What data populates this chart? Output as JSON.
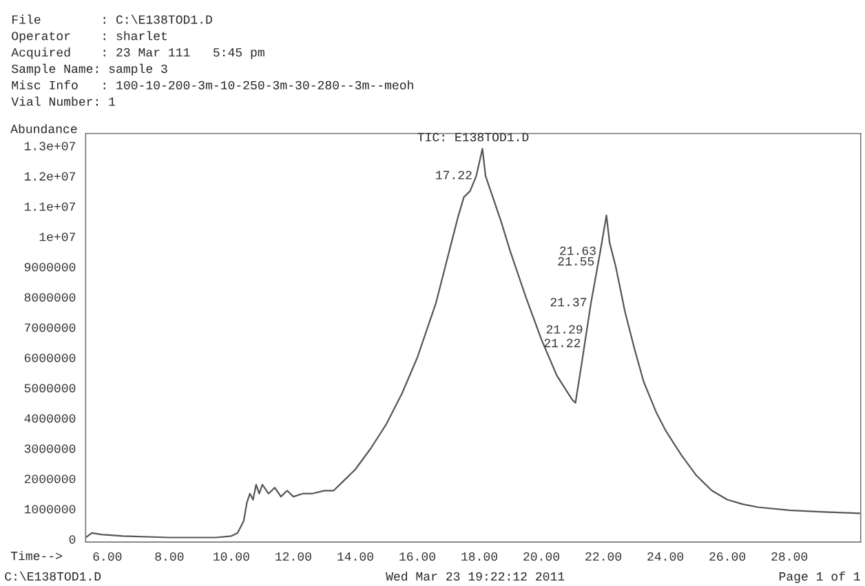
{
  "chart_data": {
    "type": "line",
    "title": "TIC: E138TOD1.D",
    "ylabel": "Abundance",
    "xlabel": "Time-->",
    "annotations": [
      "File        : C:\\E138TOD1.D",
      "Operator    : sharlet",
      "Acquired    : 23 Mar 111   5:45 pm",
      "Sample Name: sample 3",
      "Misc Info   : 100-10-200-3m-10-250-3m-30-280--3m--meoh",
      "Vial Number: 1",
      "C:\\E138TOD1.D",
      "Wed Mar 23 19:22:12 2011",
      "Page 1 of 1",
      {
        "text": "17.22",
        "x": 17.9,
        "y": 12000000
      },
      {
        "text": "21.63",
        "x": 21.9,
        "y": 9500000
      },
      {
        "text": "21.55",
        "x": 21.84,
        "y": 9150000
      },
      {
        "text": "21.37",
        "x": 21.6,
        "y": 7800000
      },
      {
        "text": "21.29",
        "x": 21.47,
        "y": 6900000
      },
      {
        "text": "21.22",
        "x": 21.4,
        "y": 6450000
      }
    ],
    "x": [
      5.3,
      5.5,
      5.8,
      6.5,
      8,
      9.5,
      10.0,
      10.2,
      10.4,
      10.5,
      10.6,
      10.7,
      10.8,
      10.9,
      11.0,
      11.2,
      11.4,
      11.6,
      11.8,
      12.0,
      12.3,
      12.6,
      13.0,
      13.3,
      13.6,
      14.0,
      14.5,
      15.0,
      15.5,
      16.0,
      16.3,
      16.6,
      16.9,
      17.1,
      17.3,
      17.5,
      17.7,
      17.9,
      18.1,
      18.2,
      18.4,
      18.7,
      19.0,
      19.5,
      20.0,
      20.5,
      21.0,
      21.1,
      21.3,
      21.6,
      21.9,
      22.1,
      22.2,
      22.4,
      22.7,
      23.0,
      23.3,
      23.7,
      24.0,
      24.5,
      25.0,
      25.5,
      26.0,
      26.5,
      27.0,
      28.0,
      29.0,
      30.3
    ],
    "series": [
      {
        "color": "#555555",
        "values": [
          50000,
          200000,
          150000,
          100000,
          50000,
          50000,
          100000,
          200000,
          600000,
          1200000,
          1500000,
          1300000,
          1800000,
          1500000,
          1800000,
          1500000,
          1700000,
          1400000,
          1600000,
          1400000,
          1500000,
          1500000,
          1600000,
          1600000,
          1900000,
          2300000,
          3000000,
          3800000,
          4800000,
          6000000,
          6900000,
          7800000,
          9000000,
          9800000,
          10600000,
          11300000,
          11500000,
          12000000,
          12900000,
          12000000,
          11400000,
          10500000,
          9500000,
          8000000,
          6600000,
          5400000,
          4600000,
          4500000,
          5800000,
          7800000,
          9500000,
          10700000,
          9800000,
          9000000,
          7500000,
          6300000,
          5200000,
          4200000,
          3600000,
          2800000,
          2100000,
          1600000,
          1300000,
          1150000,
          1050000,
          950000,
          900000,
          850000
        ]
      }
    ],
    "xlim": [
      5.3,
      30.3
    ],
    "ylim": [
      -100000,
      13400000
    ],
    "xticks": [
      {
        "value": 6,
        "label": "6.00"
      },
      {
        "value": 8,
        "label": "8.00"
      },
      {
        "value": 10,
        "label": "10.00"
      },
      {
        "value": 12,
        "label": "12.00"
      },
      {
        "value": 14,
        "label": "14.00"
      },
      {
        "value": 16,
        "label": "16.00"
      },
      {
        "value": 18,
        "label": "18.00"
      },
      {
        "value": 20,
        "label": "20.00"
      },
      {
        "value": 22,
        "label": "22.00"
      },
      {
        "value": 24,
        "label": "24.00"
      },
      {
        "value": 26,
        "label": "26.00"
      },
      {
        "value": 28,
        "label": "28.00"
      }
    ],
    "yticks": [
      0,
      1000000,
      2000000,
      3000000,
      4000000,
      5000000,
      6000000,
      7000000,
      8000000,
      9000000,
      {
        "value": 10000000,
        "label": "1e+07"
      },
      {
        "value": 11000000,
        "label": "1.1e+07"
      },
      {
        "value": 12000000,
        "label": "1.2e+07"
      },
      {
        "value": 13000000,
        "label": "1.3e+07"
      }
    ],
    "grid": false,
    "legend": false,
    "marker": "none",
    "line_style": "solid"
  }
}
